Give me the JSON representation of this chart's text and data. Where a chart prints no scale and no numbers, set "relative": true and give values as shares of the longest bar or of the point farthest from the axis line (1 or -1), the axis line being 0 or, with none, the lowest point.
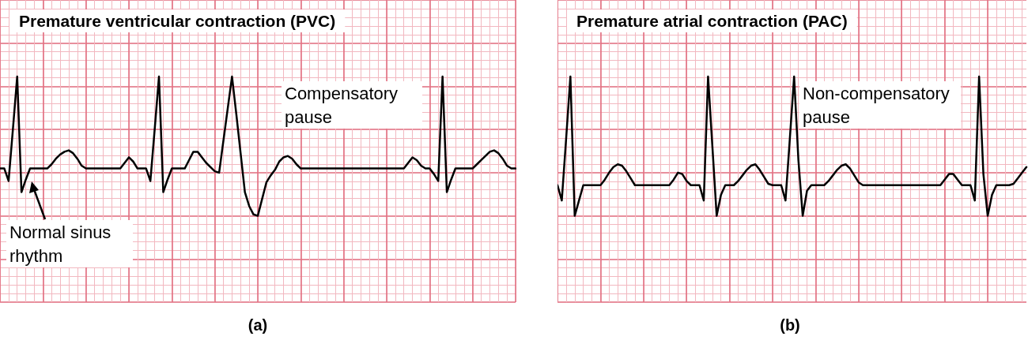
{
  "chart_data": [
    {
      "type": "line",
      "title": "Premature ventricular contraction (PVC)",
      "relative": true,
      "grid": true,
      "categories": [
        null,
        null,
        null,
        null,
        null,
        null,
        null,
        null,
        null,
        null,
        null,
        null,
        null,
        null,
        null,
        null,
        null,
        null,
        null,
        null,
        null,
        null,
        null,
        null,
        null,
        null,
        null,
        null,
        null,
        null,
        null,
        null,
        null,
        null,
        null,
        null,
        null,
        null,
        null,
        null,
        null,
        null,
        null,
        null,
        null,
        null,
        null,
        null,
        null,
        null,
        null,
        null,
        null,
        null,
        null,
        null,
        null,
        null,
        null,
        null,
        null,
        null,
        null,
        null,
        null,
        null,
        null,
        null,
        null,
        null,
        null,
        null,
        null,
        null,
        null,
        null,
        null,
        null,
        null,
        null,
        null,
        null,
        null,
        null,
        null,
        null,
        null,
        null,
        null,
        null,
        null,
        null,
        null,
        null,
        null,
        null,
        null,
        null,
        null,
        null,
        null,
        null,
        null,
        null,
        null,
        null,
        null,
        null,
        null,
        null,
        null,
        null,
        null,
        null,
        null,
        null,
        null,
        null,
        null,
        null,
        null
      ],
      "series": [
        {
          "color": "#000000",
          "values": [
            0.34,
            0.34,
            0.25,
            0.62,
            1,
            0.17,
            0.26,
            0.34,
            0.34,
            0.34,
            0.34,
            0.34,
            0.37,
            0.41,
            0.44,
            0.46,
            0.47,
            0.45,
            0.41,
            0.36,
            0.34,
            0.34,
            0.34,
            0.34,
            0.34,
            0.34,
            0.34,
            0.34,
            0.34,
            0.38,
            0.42,
            0.39,
            0.34,
            0.34,
            0.34,
            0.25,
            0.62,
            1,
            0.17,
            0.26,
            0.34,
            0.34,
            0.34,
            0.34,
            0.4,
            0.46,
            0.46,
            0.42,
            0.38,
            0.35,
            0.32,
            0.31,
            0.54,
            0.77,
            1,
            0.73,
            0.45,
            0.17,
            0.07,
            0.01,
            0,
            0.12,
            0.24,
            0.29,
            0.33,
            0.39,
            0.42,
            0.43,
            0.41,
            0.37,
            0.34,
            0.34,
            0.34,
            0.34,
            0.34,
            0.34,
            0.34,
            0.34,
            0.34,
            0.34,
            0.34,
            0.34,
            0.34,
            0.34,
            0.34,
            0.34,
            0.34,
            0.34,
            0.34,
            0.34,
            0.34,
            0.34,
            0.34,
            0.34,
            0.34,
            0.38,
            0.42,
            0.4,
            0.36,
            0.34,
            0.34,
            0.3,
            0.25,
            1,
            0.17,
            0.26,
            0.34,
            0.34,
            0.34,
            0.34,
            0.34,
            0.37,
            0.4,
            0.43,
            0.46,
            0.47,
            0.45,
            0.41,
            0.36,
            0.34,
            0.34
          ]
        }
      ],
      "annotations": [
        "Compensatory pause",
        "Normal sinus rhythm",
        "(a)"
      ]
    },
    {
      "type": "line",
      "title": "Premature atrial contraction (PAC)",
      "relative": true,
      "grid": true,
      "categories": [
        null,
        null,
        null,
        null,
        null,
        null,
        null,
        null,
        null,
        null,
        null,
        null,
        null,
        null,
        null,
        null,
        null,
        null,
        null,
        null,
        null,
        null,
        null,
        null,
        null,
        null,
        null,
        null,
        null,
        null,
        null,
        null,
        null,
        null,
        null,
        null,
        null,
        null,
        null,
        null,
        null,
        null,
        null,
        null,
        null,
        null,
        null,
        null,
        null,
        null,
        null,
        null,
        null,
        null,
        null,
        null,
        null,
        null,
        null,
        null,
        null,
        null,
        null,
        null,
        null,
        null,
        null,
        null,
        null,
        null,
        null,
        null,
        null,
        null,
        null,
        null,
        null,
        null,
        null,
        null,
        null,
        null,
        null,
        null,
        null,
        null,
        null,
        null,
        null,
        null,
        null,
        null,
        null,
        null,
        null,
        null,
        null,
        null,
        null,
        null,
        null,
        null,
        null,
        null,
        null,
        null,
        null,
        null,
        null,
        null
      ],
      "series": [
        {
          "color": "#000000",
          "values": [
            0.22,
            0.11,
            0.55,
            1,
            0,
            0.11,
            0.22,
            0.22,
            0.22,
            0.22,
            0.22,
            0.26,
            0.31,
            0.35,
            0.37,
            0.36,
            0.32,
            0.27,
            0.22,
            0.22,
            0.22,
            0.22,
            0.22,
            0.22,
            0.22,
            0.22,
            0.22,
            0.26,
            0.31,
            0.3,
            0.25,
            0.22,
            0.22,
            0.22,
            0.11,
            1,
            0.5,
            0,
            0.15,
            0.22,
            0.22,
            0.22,
            0.25,
            0.29,
            0.33,
            0.36,
            0.37,
            0.33,
            0.28,
            0.23,
            0.22,
            0.22,
            0.22,
            0.11,
            0.55,
            1,
            0.4,
            0,
            0.18,
            0.22,
            0.22,
            0.22,
            0.22,
            0.25,
            0.29,
            0.33,
            0.36,
            0.37,
            0.34,
            0.29,
            0.24,
            0.22,
            0.22,
            0.22,
            0.22,
            0.22,
            0.22,
            0.22,
            0.22,
            0.22,
            0.22,
            0.22,
            0.22,
            0.22,
            0.22,
            0.22,
            0.22,
            0.22,
            0.22,
            0.22,
            0.26,
            0.3,
            0.3,
            0.26,
            0.22,
            0.22,
            0.22,
            0.11,
            1,
            0.3,
            0,
            0.15,
            0.22,
            0.22,
            0.22,
            0.22,
            0.23,
            0.27,
            0.31,
            0.35
          ]
        }
      ],
      "annotations": [
        "Non-compensatory pause",
        "(b)"
      ]
    }
  ]
}
